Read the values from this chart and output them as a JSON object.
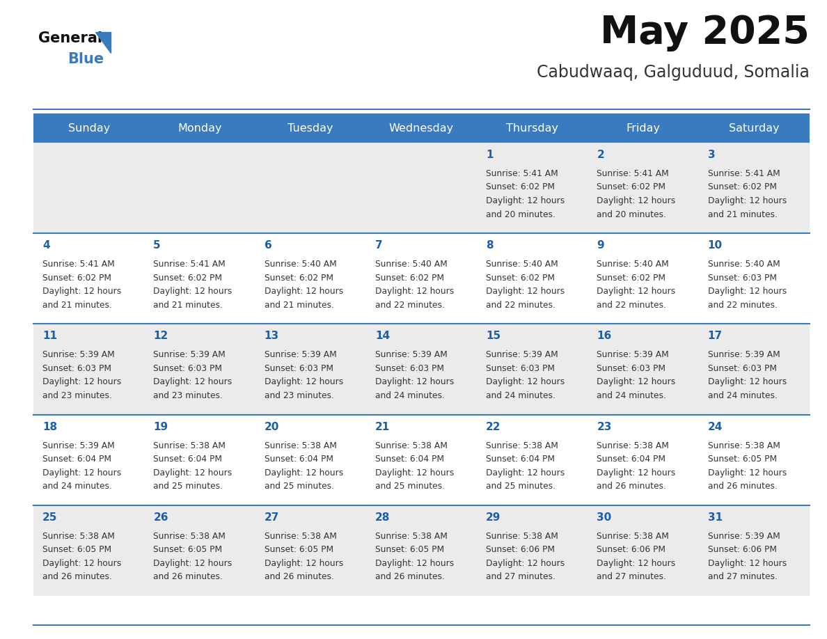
{
  "title": "May 2025",
  "subtitle": "Cabudwaaq, Galguduud, Somalia",
  "header_color": "#3a7bbf",
  "header_text_color": "#ffffff",
  "days_of_week": [
    "Sunday",
    "Monday",
    "Tuesday",
    "Wednesday",
    "Thursday",
    "Friday",
    "Saturday"
  ],
  "bg_color": "#ffffff",
  "cell_bg_even": "#ebebeb",
  "cell_bg_odd": "#ffffff",
  "text_color": "#333333",
  "day_num_color": "#1a5fa8",
  "separator_color": "#3a7bbf",
  "calendar_data": [
    [
      null,
      null,
      null,
      null,
      {
        "day": 1,
        "sunrise": "5:41 AM",
        "sunset": "6:02 PM",
        "daylight": "12 hours",
        "daylight2": "and 20 minutes."
      },
      {
        "day": 2,
        "sunrise": "5:41 AM",
        "sunset": "6:02 PM",
        "daylight": "12 hours",
        "daylight2": "and 20 minutes."
      },
      {
        "day": 3,
        "sunrise": "5:41 AM",
        "sunset": "6:02 PM",
        "daylight": "12 hours",
        "daylight2": "and 21 minutes."
      }
    ],
    [
      {
        "day": 4,
        "sunrise": "5:41 AM",
        "sunset": "6:02 PM",
        "daylight": "12 hours",
        "daylight2": "and 21 minutes."
      },
      {
        "day": 5,
        "sunrise": "5:41 AM",
        "sunset": "6:02 PM",
        "daylight": "12 hours",
        "daylight2": "and 21 minutes."
      },
      {
        "day": 6,
        "sunrise": "5:40 AM",
        "sunset": "6:02 PM",
        "daylight": "12 hours",
        "daylight2": "and 21 minutes."
      },
      {
        "day": 7,
        "sunrise": "5:40 AM",
        "sunset": "6:02 PM",
        "daylight": "12 hours",
        "daylight2": "and 22 minutes."
      },
      {
        "day": 8,
        "sunrise": "5:40 AM",
        "sunset": "6:02 PM",
        "daylight": "12 hours",
        "daylight2": "and 22 minutes."
      },
      {
        "day": 9,
        "sunrise": "5:40 AM",
        "sunset": "6:02 PM",
        "daylight": "12 hours",
        "daylight2": "and 22 minutes."
      },
      {
        "day": 10,
        "sunrise": "5:40 AM",
        "sunset": "6:03 PM",
        "daylight": "12 hours",
        "daylight2": "and 22 minutes."
      }
    ],
    [
      {
        "day": 11,
        "sunrise": "5:39 AM",
        "sunset": "6:03 PM",
        "daylight": "12 hours",
        "daylight2": "and 23 minutes."
      },
      {
        "day": 12,
        "sunrise": "5:39 AM",
        "sunset": "6:03 PM",
        "daylight": "12 hours",
        "daylight2": "and 23 minutes."
      },
      {
        "day": 13,
        "sunrise": "5:39 AM",
        "sunset": "6:03 PM",
        "daylight": "12 hours",
        "daylight2": "and 23 minutes."
      },
      {
        "day": 14,
        "sunrise": "5:39 AM",
        "sunset": "6:03 PM",
        "daylight": "12 hours",
        "daylight2": "and 24 minutes."
      },
      {
        "day": 15,
        "sunrise": "5:39 AM",
        "sunset": "6:03 PM",
        "daylight": "12 hours",
        "daylight2": "and 24 minutes."
      },
      {
        "day": 16,
        "sunrise": "5:39 AM",
        "sunset": "6:03 PM",
        "daylight": "12 hours",
        "daylight2": "and 24 minutes."
      },
      {
        "day": 17,
        "sunrise": "5:39 AM",
        "sunset": "6:03 PM",
        "daylight": "12 hours",
        "daylight2": "and 24 minutes."
      }
    ],
    [
      {
        "day": 18,
        "sunrise": "5:39 AM",
        "sunset": "6:04 PM",
        "daylight": "12 hours",
        "daylight2": "and 24 minutes."
      },
      {
        "day": 19,
        "sunrise": "5:38 AM",
        "sunset": "6:04 PM",
        "daylight": "12 hours",
        "daylight2": "and 25 minutes."
      },
      {
        "day": 20,
        "sunrise": "5:38 AM",
        "sunset": "6:04 PM",
        "daylight": "12 hours",
        "daylight2": "and 25 minutes."
      },
      {
        "day": 21,
        "sunrise": "5:38 AM",
        "sunset": "6:04 PM",
        "daylight": "12 hours",
        "daylight2": "and 25 minutes."
      },
      {
        "day": 22,
        "sunrise": "5:38 AM",
        "sunset": "6:04 PM",
        "daylight": "12 hours",
        "daylight2": "and 25 minutes."
      },
      {
        "day": 23,
        "sunrise": "5:38 AM",
        "sunset": "6:04 PM",
        "daylight": "12 hours",
        "daylight2": "and 26 minutes."
      },
      {
        "day": 24,
        "sunrise": "5:38 AM",
        "sunset": "6:05 PM",
        "daylight": "12 hours",
        "daylight2": "and 26 minutes."
      }
    ],
    [
      {
        "day": 25,
        "sunrise": "5:38 AM",
        "sunset": "6:05 PM",
        "daylight": "12 hours",
        "daylight2": "and 26 minutes."
      },
      {
        "day": 26,
        "sunrise": "5:38 AM",
        "sunset": "6:05 PM",
        "daylight": "12 hours",
        "daylight2": "and 26 minutes."
      },
      {
        "day": 27,
        "sunrise": "5:38 AM",
        "sunset": "6:05 PM",
        "daylight": "12 hours",
        "daylight2": "and 26 minutes."
      },
      {
        "day": 28,
        "sunrise": "5:38 AM",
        "sunset": "6:05 PM",
        "daylight": "12 hours",
        "daylight2": "and 26 minutes."
      },
      {
        "day": 29,
        "sunrise": "5:38 AM",
        "sunset": "6:06 PM",
        "daylight": "12 hours",
        "daylight2": "and 27 minutes."
      },
      {
        "day": 30,
        "sunrise": "5:38 AM",
        "sunset": "6:06 PM",
        "daylight": "12 hours",
        "daylight2": "and 27 minutes."
      },
      {
        "day": 31,
        "sunrise": "5:39 AM",
        "sunset": "6:06 PM",
        "daylight": "12 hours",
        "daylight2": "and 27 minutes."
      }
    ]
  ]
}
